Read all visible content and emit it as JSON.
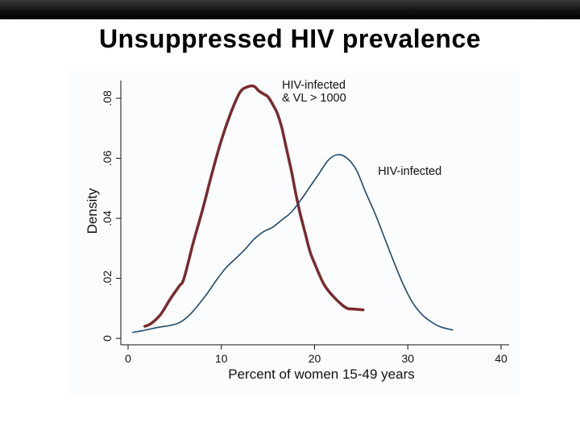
{
  "slide": {
    "title": "Unsuppressed HIV prevalence"
  },
  "chart_data": {
    "type": "line",
    "xlabel": "Percent of women 15-49 years",
    "ylabel": "Density",
    "xlim": [
      0,
      40
    ],
    "ylim": [
      0,
      0.085
    ],
    "x_ticks": [
      {
        "value": 0,
        "label": "0"
      },
      {
        "value": 10,
        "label": "10"
      },
      {
        "value": 20,
        "label": "20"
      },
      {
        "value": 30,
        "label": "30"
      },
      {
        "value": 40,
        "label": "40"
      }
    ],
    "y_ticks": [
      {
        "value": 0,
        "label": "0"
      },
      {
        "value": 0.02,
        "label": ".02"
      },
      {
        "value": 0.04,
        "label": ".04"
      },
      {
        "value": 0.06,
        "label": ".06"
      },
      {
        "value": 0.08,
        "label": ".08"
      }
    ],
    "grid": false,
    "legend": "none",
    "series": [
      {
        "color": "#7a2a2e",
        "width": 3.5,
        "label_lines": [
          "HIV-infected",
          "& VL > 1000"
        ],
        "label_at": {
          "x": 16.5,
          "y": 0.0832
        },
        "x": [
          1.8,
          2.5,
          3.5,
          4.5,
          5.5,
          6.0,
          7.0,
          8.0,
          9.0,
          10.0,
          11.0,
          12.0,
          12.8,
          13.5,
          14.0,
          14.5,
          15.0,
          15.5,
          16.0,
          16.5,
          17.0,
          17.5,
          18.0,
          18.5,
          19.0,
          19.5,
          20.0,
          21.0,
          22.0,
          23.0,
          23.5,
          24.0,
          25.2
        ],
        "y": [
          0.004,
          0.005,
          0.008,
          0.013,
          0.0175,
          0.02,
          0.032,
          0.043,
          0.055,
          0.066,
          0.075,
          0.082,
          0.0838,
          0.084,
          0.0825,
          0.0815,
          0.0805,
          0.078,
          0.075,
          0.07,
          0.063,
          0.056,
          0.048,
          0.041,
          0.035,
          0.029,
          0.025,
          0.018,
          0.014,
          0.011,
          0.01,
          0.0098,
          0.0095
        ]
      },
      {
        "color": "#22486b",
        "width": 1.6,
        "label_lines": [
          "HIV-infected"
        ],
        "label_at": {
          "x": 26.8,
          "y": 0.0545
        },
        "x": [
          0.5,
          1.5,
          2.5,
          3.5,
          4.5,
          5.5,
          6.5,
          7.5,
          8.5,
          9.5,
          10.5,
          11.5,
          12.5,
          13.5,
          14.5,
          15.5,
          16.5,
          17.5,
          18.5,
          19.5,
          20.5,
          21.5,
          22.5,
          23.5,
          24.5,
          25.5,
          26.5,
          27.5,
          28.5,
          29.5,
          30.5,
          31.5,
          32.5,
          33.5,
          34.8
        ],
        "y": [
          0.002,
          0.0025,
          0.0032,
          0.0038,
          0.0043,
          0.0052,
          0.0075,
          0.011,
          0.015,
          0.0195,
          0.0235,
          0.0265,
          0.0295,
          0.033,
          0.0355,
          0.037,
          0.0395,
          0.042,
          0.046,
          0.0505,
          0.055,
          0.0595,
          0.0612,
          0.06,
          0.056,
          0.0485,
          0.0415,
          0.0335,
          0.0255,
          0.018,
          0.012,
          0.008,
          0.0055,
          0.0038,
          0.0028
        ]
      }
    ]
  }
}
